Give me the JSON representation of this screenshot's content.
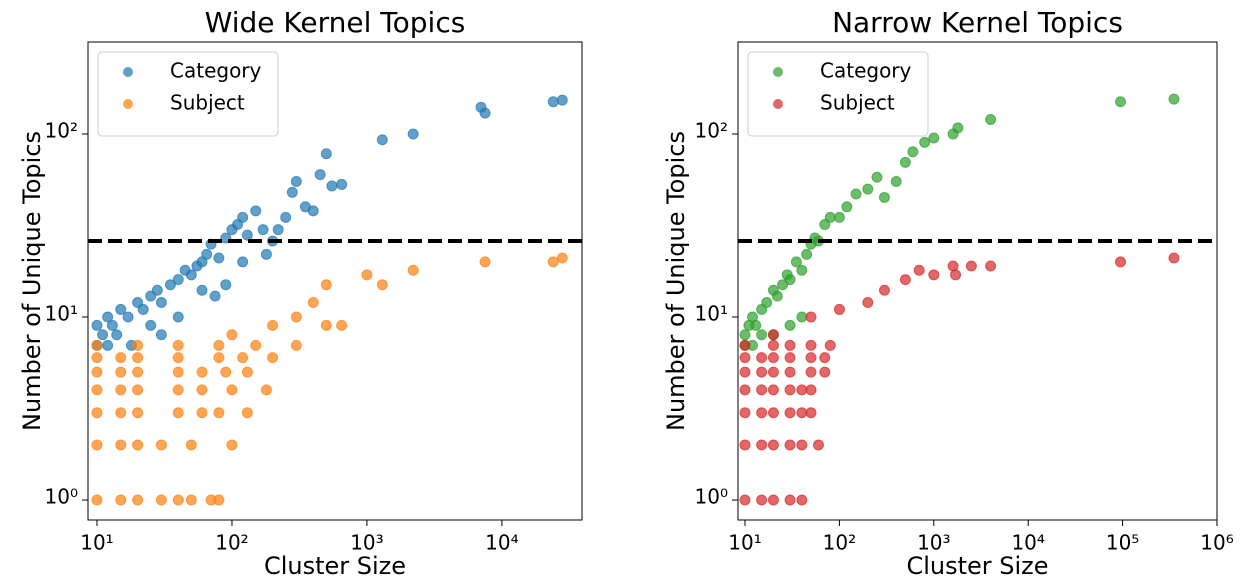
{
  "chart_data": [
    {
      "type": "scatter",
      "title": "Wide Kernel Topics",
      "x_label": "Cluster Size",
      "y_label": "Number of Unique Topics",
      "xscale": "log",
      "yscale": "log",
      "xlim": [
        8.58,
        39200
      ],
      "ylim": [
        0.778,
        318
      ],
      "xticks": [
        {
          "value": 10,
          "label": "10¹"
        },
        {
          "value": 100,
          "label": "10²"
        },
        {
          "value": 1000,
          "label": "10³"
        },
        {
          "value": 10000,
          "label": "10⁴"
        }
      ],
      "yticks": [
        {
          "value": 1,
          "label": "10⁰"
        },
        {
          "value": 10,
          "label": "10¹"
        },
        {
          "value": 100,
          "label": "10²"
        }
      ],
      "hline": 26,
      "legend": "upper left",
      "series": [
        {
          "name": "Category",
          "color": "#1f77b4",
          "x": [
            10,
            11,
            12,
            13,
            15,
            17,
            20,
            22,
            25,
            28,
            30,
            35,
            40,
            45,
            50,
            55,
            60,
            65,
            70,
            80,
            90,
            100,
            110,
            120,
            130,
            150,
            170,
            200,
            220,
            250,
            280,
            300,
            350,
            400,
            450,
            500,
            550,
            650,
            1300,
            2200,
            7000,
            7500,
            24000,
            28000,
            10,
            12,
            14,
            18,
            25,
            30,
            40,
            60,
            75,
            90,
            120,
            180
          ],
          "y": [
            9,
            8,
            10,
            9,
            11,
            10,
            12,
            11,
            13,
            14,
            12,
            15,
            16,
            18,
            17,
            19,
            20,
            22,
            25,
            21,
            27,
            30,
            32,
            35,
            28,
            38,
            30,
            26,
            30,
            35,
            48,
            55,
            40,
            38,
            60,
            78,
            52,
            53,
            93,
            100,
            140,
            130,
            150,
            153,
            7,
            7,
            8,
            7,
            9,
            8,
            10,
            14,
            13,
            15,
            20,
            22
          ]
        },
        {
          "name": "Subject",
          "color": "#ff7f0e",
          "x": [
            10,
            15,
            20,
            30,
            40,
            50,
            70,
            80,
            10,
            15,
            20,
            30,
            50,
            100,
            10,
            15,
            20,
            40,
            60,
            80,
            130,
            10,
            15,
            20,
            40,
            60,
            100,
            180,
            10,
            15,
            20,
            40,
            60,
            90,
            130,
            10,
            15,
            20,
            40,
            80,
            120,
            200,
            10,
            20,
            40,
            80,
            150,
            300,
            100,
            200,
            300,
            500,
            650,
            400,
            500,
            1000,
            2200,
            7500,
            24000,
            28000,
            1300
          ],
          "y": [
            1,
            1,
            1,
            1,
            1,
            1,
            1,
            1,
            2,
            2,
            2,
            2,
            2,
            2,
            3,
            3,
            3,
            3,
            3,
            3,
            3,
            4,
            4,
            4,
            4,
            4,
            4,
            4,
            5,
            5,
            5,
            5,
            5,
            5,
            5,
            6,
            6,
            6,
            6,
            6,
            6,
            6,
            7,
            7,
            7,
            7,
            7,
            7,
            8,
            9,
            10,
            9,
            9,
            12,
            15,
            17,
            18,
            20,
            20,
            21,
            15
          ]
        }
      ]
    },
    {
      "type": "scatter",
      "title": "Narrow Kernel Topics",
      "x_label": "Cluster Size",
      "y_label": "Number of Unique Topics",
      "xscale": "log",
      "yscale": "log",
      "xlim": [
        8.43,
        1000000
      ],
      "ylim": [
        0.778,
        318
      ],
      "xticks": [
        {
          "value": 10,
          "label": "10¹"
        },
        {
          "value": 100,
          "label": "10²"
        },
        {
          "value": 1000,
          "label": "10³"
        },
        {
          "value": 10000,
          "label": "10⁴"
        },
        {
          "value": 100000,
          "label": "10⁵"
        },
        {
          "value": 1000000,
          "label": "10⁶"
        }
      ],
      "yticks": [
        {
          "value": 1,
          "label": "10⁰"
        },
        {
          "value": 10,
          "label": "10¹"
        },
        {
          "value": 100,
          "label": "10²"
        }
      ],
      "hline": 26,
      "legend": "upper left",
      "series": [
        {
          "name": "Category",
          "color": "#2ca02c",
          "x": [
            10,
            11,
            12,
            13,
            15,
            17,
            20,
            22,
            25,
            28,
            30,
            35,
            40,
            45,
            50,
            55,
            60,
            70,
            80,
            100,
            120,
            150,
            200,
            250,
            300,
            400,
            500,
            600,
            800,
            1000,
            1600,
            1800,
            4000,
            95000,
            350000,
            10,
            12,
            15,
            20,
            30,
            40
          ],
          "y": [
            8,
            9,
            10,
            9,
            11,
            12,
            14,
            13,
            15,
            17,
            16,
            20,
            18,
            22,
            25,
            27,
            26,
            32,
            35,
            35,
            40,
            47,
            50,
            58,
            45,
            55,
            70,
            80,
            90,
            95,
            100,
            108,
            120,
            150,
            155,
            7,
            7,
            8,
            8,
            9,
            10
          ]
        },
        {
          "name": "Subject",
          "color": "#d62728",
          "x": [
            10,
            15,
            20,
            30,
            40,
            10,
            15,
            20,
            30,
            40,
            60,
            10,
            15,
            20,
            30,
            40,
            50,
            10,
            15,
            20,
            30,
            40,
            50,
            10,
            15,
            20,
            30,
            50,
            70,
            10,
            15,
            20,
            30,
            50,
            70,
            10,
            20,
            30,
            50,
            80,
            20,
            50,
            100,
            200,
            300,
            500,
            700,
            1000,
            1600,
            1700,
            2500,
            4000,
            95000,
            350000
          ],
          "y": [
            1,
            1,
            1,
            1,
            1,
            2,
            2,
            2,
            2,
            2,
            2,
            3,
            3,
            3,
            3,
            3,
            3,
            4,
            4,
            4,
            4,
            4,
            4,
            5,
            5,
            5,
            5,
            5,
            5,
            6,
            6,
            6,
            6,
            6,
            6,
            7,
            7,
            7,
            7,
            7,
            8,
            10,
            11,
            12,
            14,
            16,
            18,
            17,
            19,
            17,
            19,
            19,
            20,
            21
          ]
        }
      ]
    }
  ]
}
